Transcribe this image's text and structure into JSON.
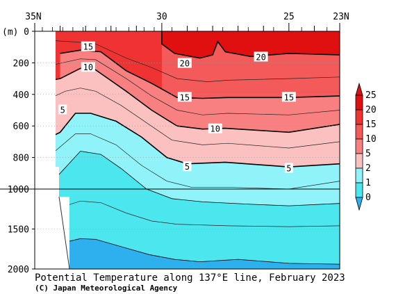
{
  "chart_data": {
    "type": "contour",
    "title": "Potential Temperature along 137°E line, February 2023",
    "credit": "(C) Japan Meteorological Agency",
    "y_unit": "(m)",
    "x_ticklabels": [
      "35N",
      "30",
      "25",
      "23N"
    ],
    "x_ticks_deg": [
      35,
      30,
      25,
      23
    ],
    "xlim": [
      35,
      23
    ],
    "y_ticklabels": [
      "0",
      "200",
      "400",
      "600",
      "800",
      "1000",
      "1500",
      "2000"
    ],
    "y_ticks_m": [
      0,
      200,
      400,
      600,
      800,
      1000,
      1500,
      2000
    ],
    "ylim": [
      0,
      2000
    ],
    "y_scale_break_m": 1000,
    "grid": "dotted",
    "colorbar": {
      "labels": [
        "25",
        "20",
        "15",
        "10",
        "5",
        "2",
        "1",
        "0"
      ],
      "levels": [
        25,
        20,
        15,
        10,
        5,
        2,
        1,
        0
      ],
      "colors": [
        "#e01010",
        "#ef3333",
        "#f45a5a",
        "#f88080",
        "#fbc0c0",
        "#8ff3f9",
        "#4ce6ee",
        "#2fb0ee"
      ]
    },
    "contour_labels": [
      {
        "text": "15",
        "lat": 32.9,
        "depth_m": 100
      },
      {
        "text": "10",
        "lat": 32.9,
        "depth_m": 230
      },
      {
        "text": "5",
        "lat": 33.9,
        "depth_m": 500
      },
      {
        "text": "20",
        "lat": 29.1,
        "depth_m": 205
      },
      {
        "text": "20",
        "lat": 26.1,
        "depth_m": 165
      },
      {
        "text": "15",
        "lat": 29.1,
        "depth_m": 420
      },
      {
        "text": "15",
        "lat": 25.0,
        "depth_m": 420
      },
      {
        "text": "10",
        "lat": 27.9,
        "depth_m": 620
      },
      {
        "text": "5",
        "lat": 29.0,
        "depth_m": 860
      },
      {
        "text": "5",
        "lat": 25.0,
        "depth_m": 870
      }
    ],
    "isotherms": [
      {
        "level": 20,
        "points": [
          [
            30.0,
            0
          ],
          [
            30.0,
            80
          ],
          [
            29.5,
            140
          ],
          [
            28.5,
            170
          ],
          [
            28.0,
            150
          ],
          [
            27.8,
            65
          ],
          [
            27.5,
            130
          ],
          [
            26.5,
            160
          ],
          [
            25.0,
            140
          ],
          [
            23.0,
            150
          ]
        ]
      },
      {
        "level": 15,
        "points": [
          [
            34.0,
            140
          ],
          [
            33.2,
            120
          ],
          [
            32.4,
            130
          ],
          [
            31.4,
            250
          ],
          [
            30.4,
            330
          ],
          [
            29.4,
            420
          ],
          [
            28.4,
            425
          ],
          [
            27.4,
            420
          ],
          [
            25.0,
            420
          ],
          [
            23.0,
            410
          ]
        ]
      },
      {
        "level": 10,
        "points": [
          [
            35.0,
            330
          ],
          [
            34.0,
            300
          ],
          [
            33.2,
            235
          ],
          [
            32.6,
            245
          ],
          [
            31.4,
            380
          ],
          [
            30.4,
            500
          ],
          [
            29.4,
            600
          ],
          [
            28.4,
            620
          ],
          [
            27.5,
            615
          ],
          [
            25.0,
            640
          ],
          [
            23.0,
            590
          ]
        ]
      },
      {
        "level": 5,
        "points": [
          [
            35.0,
            720
          ],
          [
            34.0,
            640
          ],
          [
            33.4,
            520
          ],
          [
            32.8,
            520
          ],
          [
            31.8,
            570
          ],
          [
            30.8,
            670
          ],
          [
            29.8,
            800
          ],
          [
            29.0,
            840
          ],
          [
            27.5,
            830
          ],
          [
            25.0,
            860
          ],
          [
            23.0,
            840
          ]
        ]
      },
      {
        "level": 2,
        "points": [
          [
            35.0,
            1120
          ],
          [
            34.0,
            900
          ],
          [
            33.2,
            760
          ],
          [
            32.4,
            780
          ],
          [
            31.6,
            870
          ],
          [
            30.6,
            1000
          ],
          [
            29.6,
            1120
          ],
          [
            28.4,
            1160
          ],
          [
            26.5,
            1190
          ],
          [
            25.0,
            1210
          ],
          [
            23.0,
            1180
          ]
        ]
      },
      {
        "level": 1,
        "points": [
          [
            35.0,
            1700
          ],
          [
            34.0,
            1680
          ],
          [
            33.2,
            1620
          ],
          [
            32.6,
            1630
          ],
          [
            31.5,
            1730
          ],
          [
            30.5,
            1820
          ],
          [
            29.5,
            1880
          ],
          [
            28.5,
            1910
          ],
          [
            27.0,
            1880
          ],
          [
            25.0,
            1930
          ],
          [
            23.0,
            1940
          ]
        ]
      }
    ]
  }
}
